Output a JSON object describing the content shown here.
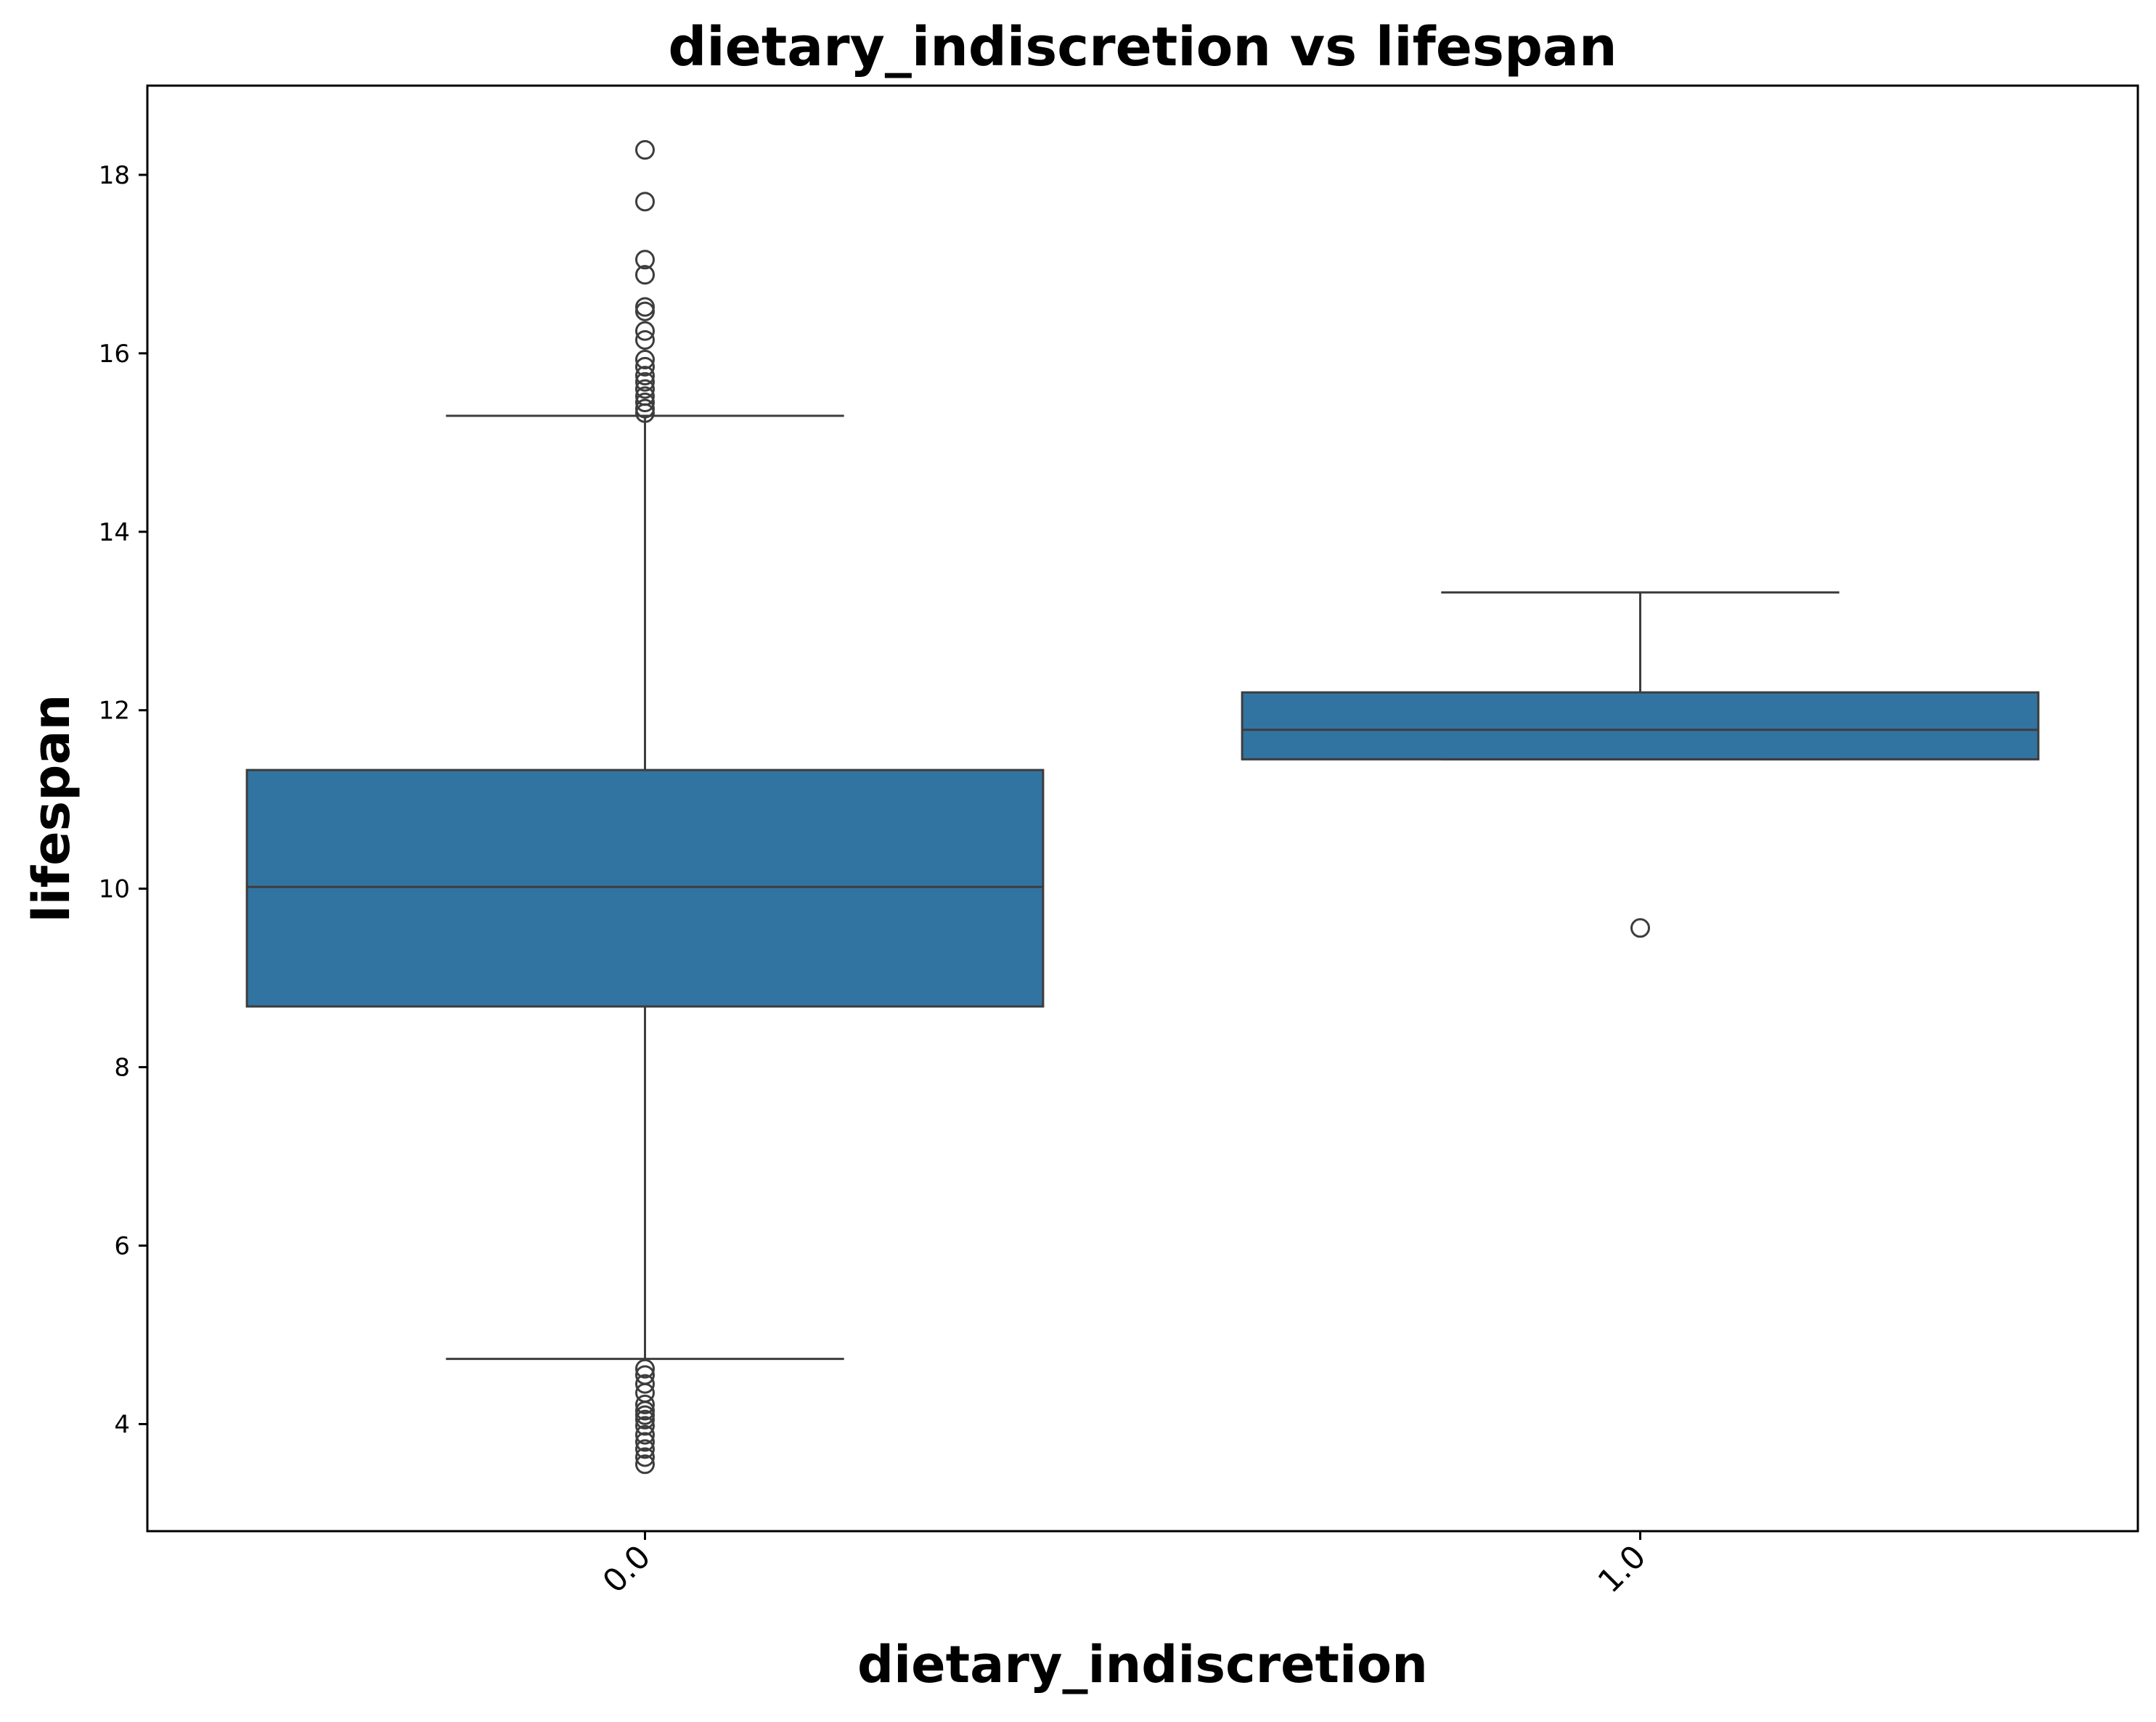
{
  "chart_data": {
    "type": "boxplot",
    "title": "dietary_indiscretion vs lifespan",
    "xlabel": "dietary_indiscretion",
    "ylabel": "lifespan",
    "ylim": [
      2.8,
      19.0
    ],
    "yticks": [
      4,
      6,
      8,
      10,
      12,
      14,
      16,
      18
    ],
    "ytick_labels": [
      "4",
      "6",
      "8",
      "10",
      "12",
      "14",
      "16",
      "18"
    ],
    "categories": [
      "0.0",
      "1.0"
    ],
    "box_color": "#3274a1",
    "line_color": "#3d3d3d",
    "grid": false,
    "legend": "none",
    "boxes": [
      {
        "category": "0.0",
        "whisker_low": 4.73,
        "q1": 8.68,
        "median": 10.02,
        "q3": 11.33,
        "whisker_high": 15.3,
        "outliers": [
          18.28,
          17.7,
          17.05,
          16.88,
          16.52,
          16.47,
          16.25,
          16.15,
          15.93,
          15.85,
          15.75,
          15.68,
          15.6,
          15.52,
          15.45,
          15.38,
          15.33,
          4.62,
          4.55,
          4.45,
          4.35,
          4.22,
          4.15,
          4.1,
          4.05,
          3.98,
          3.88,
          3.8,
          3.72,
          3.63,
          3.55
        ]
      },
      {
        "category": "1.0",
        "whisker_low": 11.45,
        "q1": 11.45,
        "median": 11.78,
        "q3": 12.2,
        "whisker_high": 13.32,
        "outliers": [
          9.56
        ]
      }
    ]
  }
}
